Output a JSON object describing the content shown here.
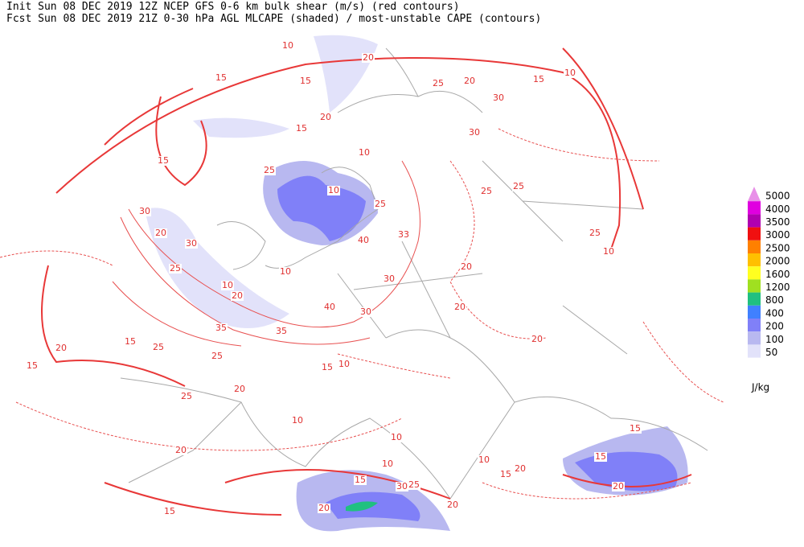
{
  "header": {
    "line1": "Init  Sun 08 DEC 2019 12Z  NCEP GFS 0-6 km bulk shear (m/s) (red contours)",
    "line2": "Fcst Sun 08 DEC 2019 21Z  0-30 hPa AGL MLCAPE (shaded) / most-unstable CAPE (contours)"
  },
  "legend": {
    "unit": "J/kg",
    "items": [
      {
        "label": "5000",
        "color": "#e890e8"
      },
      {
        "label": "4000",
        "color": "#e000e0"
      },
      {
        "label": "3500",
        "color": "#b000b0"
      },
      {
        "label": "3000",
        "color": "#f01010"
      },
      {
        "label": "2500",
        "color": "#ff8000"
      },
      {
        "label": "2000",
        "color": "#ffc000"
      },
      {
        "label": "1600",
        "color": "#ffff20"
      },
      {
        "label": "1200",
        "color": "#a0e020"
      },
      {
        "label": "800",
        "color": "#20c080"
      },
      {
        "label": "400",
        "color": "#4080ff"
      },
      {
        "label": "200",
        "color": "#8080f8"
      },
      {
        "label": "100",
        "color": "#b8b8f0"
      },
      {
        "label": "50",
        "color": "#e2e2fa"
      }
    ]
  },
  "contour_labels": [
    "10",
    "20",
    "15",
    "15",
    "20",
    "25",
    "15",
    "10",
    "30",
    "20",
    "15",
    "15",
    "10",
    "25",
    "30",
    "10",
    "25",
    "25",
    "30",
    "20",
    "30",
    "25",
    "33",
    "40",
    "25",
    "20",
    "25",
    "10",
    "10",
    "30",
    "10",
    "20",
    "20",
    "40",
    "30",
    "35",
    "35",
    "15",
    "25",
    "20",
    "25",
    "15",
    "10",
    "15",
    "20",
    "25",
    "20",
    "10",
    "20",
    "10",
    "10",
    "20",
    "15",
    "15",
    "20",
    "30",
    "25",
    "15",
    "20",
    "15",
    "20",
    "15",
    "10"
  ]
}
